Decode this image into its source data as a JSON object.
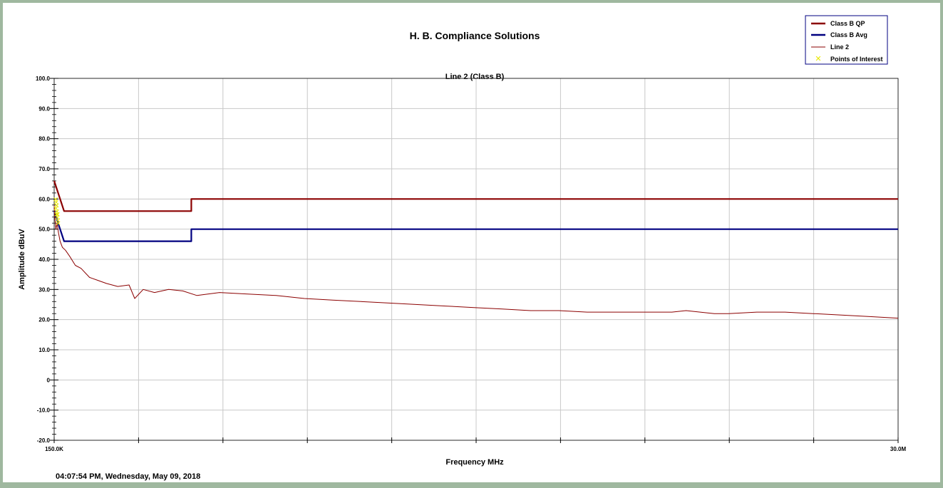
{
  "chart_data": {
    "type": "line",
    "title": "H. B. Compliance Solutions",
    "subtitle": "Line 2 (Class B)",
    "xlabel": "Frequency MHz",
    "ylabel": "Amplitude dBuV",
    "timestamp": "04:07:54 PM, Wednesday, May 09, 2018",
    "x_scale": "linear",
    "xlim": [
      0.15,
      30
    ],
    "ylim": [
      -20,
      100
    ],
    "x_tick_labels": [
      "150.0K",
      "30.0M"
    ],
    "y_ticks": [
      100,
      90,
      80,
      70,
      60,
      50,
      40,
      30,
      20,
      10,
      0,
      -10,
      -20
    ],
    "y_tick_labels": [
      "100.0",
      "90.0",
      "80.0",
      "70.0",
      "60.0",
      "50.0",
      "40.0",
      "30.0",
      "20.0",
      "10.0",
      "0",
      "-10.0",
      "-20.0"
    ],
    "grid": true,
    "legend_position": "top-right",
    "colors": {
      "class_b_qp": "#8b0000",
      "class_b_avg": "#000080",
      "line2": "#8b0000",
      "poi": "#ffff00"
    },
    "series": [
      {
        "name": "Class B QP",
        "style": "thick",
        "color": "#8b0000",
        "x": [
          0.15,
          0.5,
          0.5,
          5,
          5,
          30
        ],
        "y": [
          66,
          56,
          56,
          56,
          60,
          60
        ]
      },
      {
        "name": "Class B Avg",
        "style": "thick",
        "color": "#000080",
        "x": [
          0.15,
          0.5,
          0.5,
          5,
          5,
          30
        ],
        "y": [
          56,
          46,
          46,
          46,
          50,
          50
        ]
      },
      {
        "name": "Line 2",
        "style": "thin",
        "color": "#8b0000",
        "x": [
          0.15,
          0.18,
          0.21,
          0.25,
          0.3,
          0.36,
          0.44,
          0.55,
          0.7,
          0.9,
          1.1,
          1.4,
          1.7,
          2.0,
          2.4,
          2.8,
          3.0,
          3.3,
          3.7,
          4.2,
          4.7,
          5.2,
          6.0,
          7.0,
          8.0,
          9.0,
          10,
          11,
          12,
          13,
          14,
          15,
          16,
          17,
          18,
          19,
          20,
          21,
          22,
          22.5,
          23,
          23.5,
          24,
          25,
          26,
          27,
          28,
          29,
          30
        ],
        "y": [
          58,
          53,
          50,
          52,
          49,
          46,
          44,
          43,
          41,
          38,
          37,
          34,
          33,
          32,
          31,
          31.5,
          27,
          30,
          29,
          30,
          29.5,
          28,
          29,
          28.5,
          28,
          27,
          26.5,
          26,
          25.5,
          25,
          24.5,
          24,
          23.5,
          23,
          23,
          22.5,
          22.5,
          22.5,
          22.5,
          23,
          22.5,
          22,
          22,
          22.5,
          22.5,
          22,
          21.5,
          21,
          20.5
        ]
      },
      {
        "name": "Points of Interest",
        "style": "marker",
        "color": "#ffff00",
        "x": [
          0.15,
          0.16,
          0.17,
          0.18,
          0.19,
          0.2,
          0.21,
          0.22,
          0.23,
          0.24
        ],
        "y": [
          60,
          57,
          59,
          55,
          58,
          56,
          54,
          55,
          53,
          52
        ]
      }
    ]
  }
}
